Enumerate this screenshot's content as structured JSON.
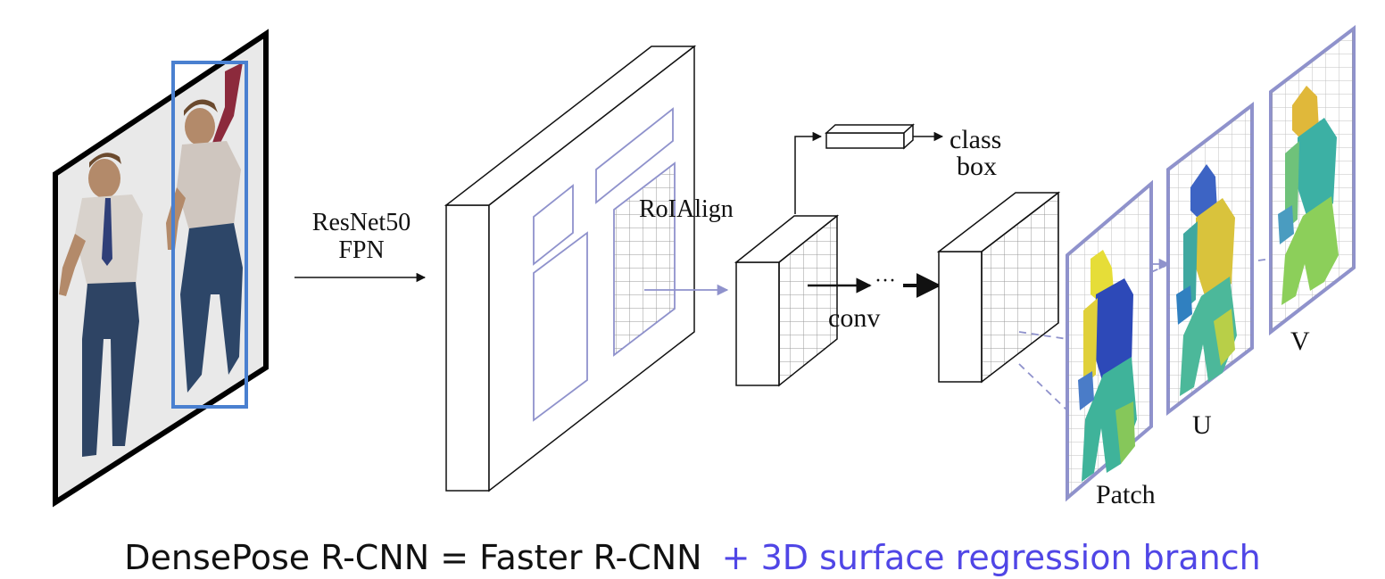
{
  "labels": {
    "backbone_line1": "ResNet50",
    "backbone_line2": "FPN",
    "roialign": "RoIAlign",
    "class": "class",
    "box": "box",
    "conv": "conv",
    "ellipsis": "···",
    "patch": "Patch",
    "u": "U",
    "v": "V"
  },
  "caption": {
    "main": "DensePose R-CNN = Faster R-CNN",
    "highlight": "+ 3D surface regression branch"
  },
  "colors": {
    "accent": "#8f92cc",
    "highlight_text": "#5046e6",
    "person_box": "#4a80d0",
    "line": "#111111"
  }
}
